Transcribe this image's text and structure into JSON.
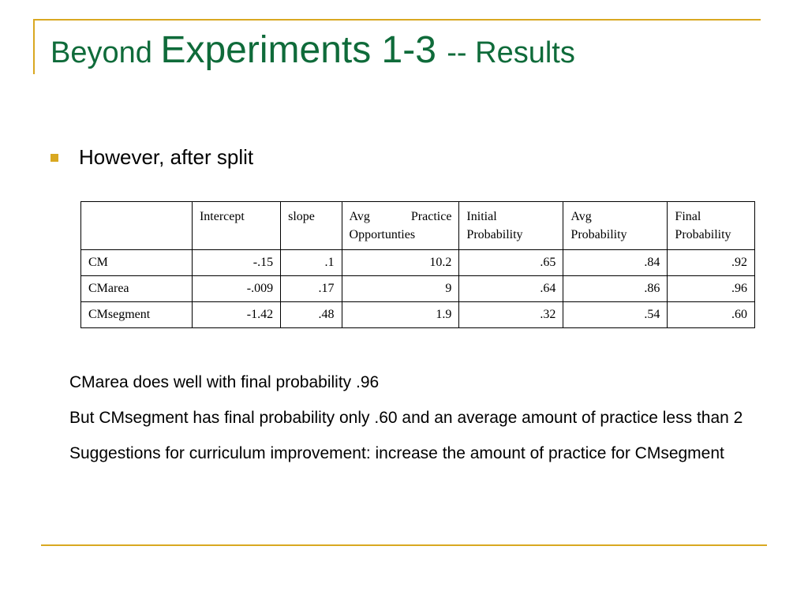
{
  "slide": {
    "title_part1": "Beyond ",
    "title_part2": "Experiments 1-3 ",
    "title_part3": "-- Results",
    "bullet": "However, after split"
  },
  "table": {
    "headers": {
      "label": "",
      "intercept": "Intercept",
      "slope": "slope",
      "avg_practice_1": "Avg",
      "avg_practice_2": "Practice",
      "avg_practice_3": "Opportunties",
      "initial_prob_1": "Initial",
      "initial_prob_2": "Probability",
      "avg_prob_1": "Avg",
      "avg_prob_2": "Probability",
      "final_prob_1": "Final",
      "final_prob_2": "Probability"
    },
    "rows": [
      {
        "label": "CM",
        "intercept": "-.15",
        "slope": ".1",
        "avg_practice": "10.2",
        "initial_prob": ".65",
        "avg_prob": ".84",
        "final_prob": ".92"
      },
      {
        "label": "CMarea",
        "intercept": "-.009",
        "slope": ".17",
        "avg_practice": "9",
        "initial_prob": ".64",
        "avg_prob": ".86",
        "final_prob": ".96"
      },
      {
        "label": "CMsegment",
        "intercept": "-1.42",
        "slope": ".48",
        "avg_practice": "1.9",
        "initial_prob": ".32",
        "avg_prob": ".54",
        "final_prob": ".60"
      }
    ]
  },
  "notes": [
    "CMarea does well with final probability .96",
    "But CMsegment has final probability only .60 and an average amount of practice less than 2",
    "Suggestions for curriculum improvement: increase the amount of practice for CMsegment"
  ],
  "colors": {
    "title": "#0f6b3a",
    "accent": "#d9a821"
  }
}
